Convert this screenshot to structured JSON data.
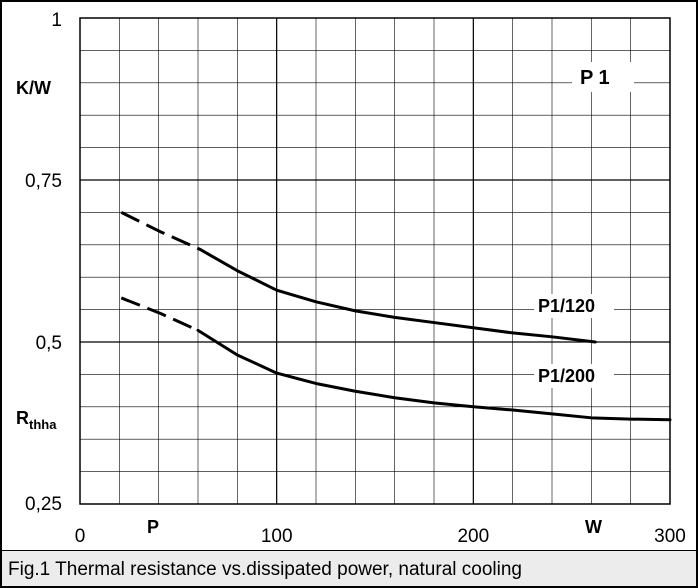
{
  "caption": "Fig.1 Thermal resistance vs.dissipated power, natural cooling",
  "chart_data": {
    "type": "line",
    "title": "P 1",
    "xlim": [
      0,
      300
    ],
    "ylim": [
      0.25,
      1
    ],
    "xticks": [
      {
        "value": 0,
        "label": "0"
      },
      {
        "value": 100,
        "label": "100"
      },
      {
        "value": 200,
        "label": "200"
      },
      {
        "value": 300,
        "label": "300"
      }
    ],
    "yticks": [
      {
        "value": 0.25,
        "label": "0,25"
      },
      {
        "value": 0.5,
        "label": "0,5"
      },
      {
        "value": 0.75,
        "label": "0,75"
      },
      {
        "value": 1,
        "label": "1"
      }
    ],
    "xlabel_symbol": "P",
    "xlabel_unit": "W",
    "ylabel_symbol": "R",
    "ylabel_subscript": "thha",
    "ylabel_unit": "K/W",
    "grid": true,
    "colors": {
      "line": "#000000",
      "grid": "#000000",
      "caption_bg": "#ececec"
    },
    "series": [
      {
        "name": "P1/120",
        "dashed_x": [
          21,
          41,
          61
        ],
        "dashed_y": [
          0.7,
          0.67,
          0.643
        ],
        "x": [
          61,
          80,
          100,
          120,
          140,
          160,
          180,
          200,
          220,
          240,
          262
        ],
        "y": [
          0.643,
          0.61,
          0.58,
          0.562,
          0.548,
          0.538,
          0.53,
          0.522,
          0.514,
          0.508,
          0.5
        ]
      },
      {
        "name": "P1/200",
        "dashed_x": [
          21,
          41,
          60
        ],
        "dashed_y": [
          0.568,
          0.544,
          0.518
        ],
        "x": [
          60,
          80,
          100,
          120,
          140,
          160,
          180,
          200,
          220,
          240,
          260,
          280,
          300
        ],
        "y": [
          0.518,
          0.48,
          0.452,
          0.436,
          0.424,
          0.414,
          0.406,
          0.4,
          0.395,
          0.389,
          0.383,
          0.381,
          0.38
        ]
      }
    ]
  }
}
